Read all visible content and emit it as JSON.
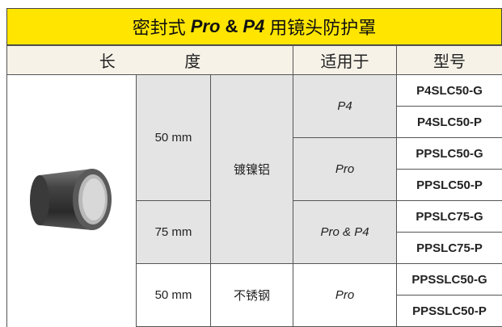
{
  "title": {
    "parts": [
      "密封式",
      "Pro",
      "&",
      "P4",
      "用镜头防护罩"
    ]
  },
  "header": [
    "长 度",
    "适用于",
    "型号"
  ],
  "lengths": [
    "50 mm",
    "75 mm",
    "50 mm"
  ],
  "materials": [
    "镀镍铝",
    "不锈钢"
  ],
  "applies": [
    "P4",
    "Pro",
    "Pro & P4",
    "Pro"
  ],
  "models": [
    "P4SLC50-G",
    "P4SLC50-P",
    "PPSLC50-G",
    "PPSLC50-P",
    "PPSLC75-G",
    "PPSLC75-P",
    "PPSSLC50-G",
    "PPSSLC50-P"
  ]
}
